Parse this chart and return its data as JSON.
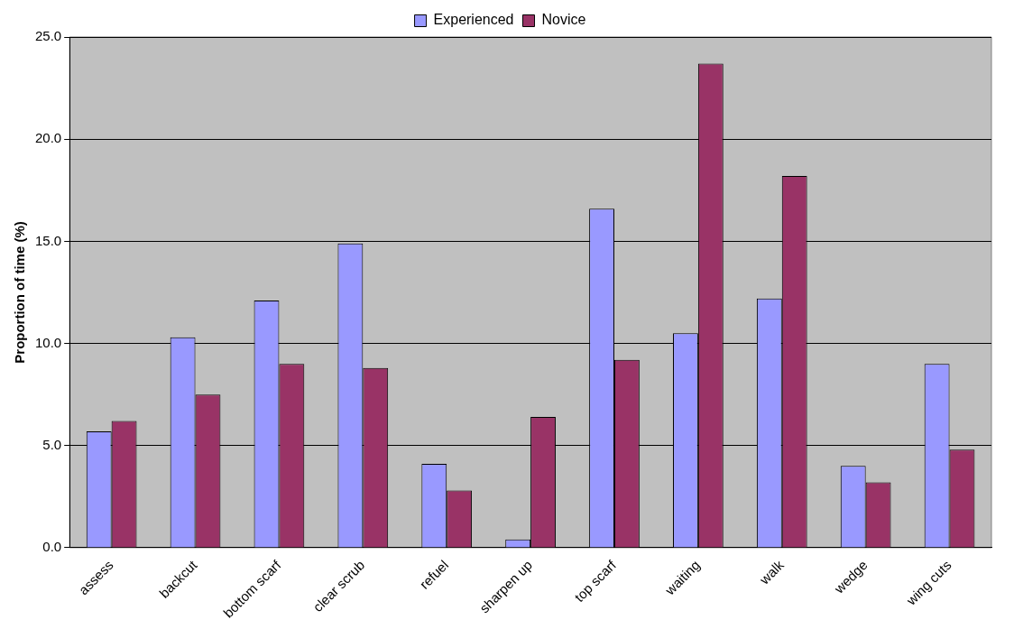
{
  "chart_data": {
    "type": "bar",
    "ylabel": "Proportion of time (%)",
    "categories": [
      "assess",
      "backcut",
      "bottom scarf",
      "clear scrub",
      "refuel",
      "sharpen up",
      "top scarf",
      "waiting",
      "walk",
      "wedge",
      "wing cuts"
    ],
    "series": [
      {
        "name": "Experienced",
        "color": "#9999ff",
        "values": [
          5.7,
          10.3,
          12.1,
          14.9,
          4.1,
          0.4,
          16.6,
          10.5,
          12.2,
          4.0,
          9.0
        ]
      },
      {
        "name": "Novice",
        "color": "#993366",
        "values": [
          6.2,
          7.5,
          9.0,
          8.8,
          2.8,
          6.4,
          9.2,
          23.7,
          18.2,
          3.2,
          4.8
        ]
      }
    ],
    "ylim": [
      0,
      25
    ],
    "yticks": [
      {
        "value": 0,
        "label": "0.0"
      },
      {
        "value": 5,
        "label": "5.0"
      },
      {
        "value": 10,
        "label": "10.0"
      },
      {
        "value": 15,
        "label": "15.0"
      },
      {
        "value": 20,
        "label": "20.0"
      },
      {
        "value": 25,
        "label": "25.0"
      }
    ],
    "grid": "y",
    "legend": "top"
  }
}
